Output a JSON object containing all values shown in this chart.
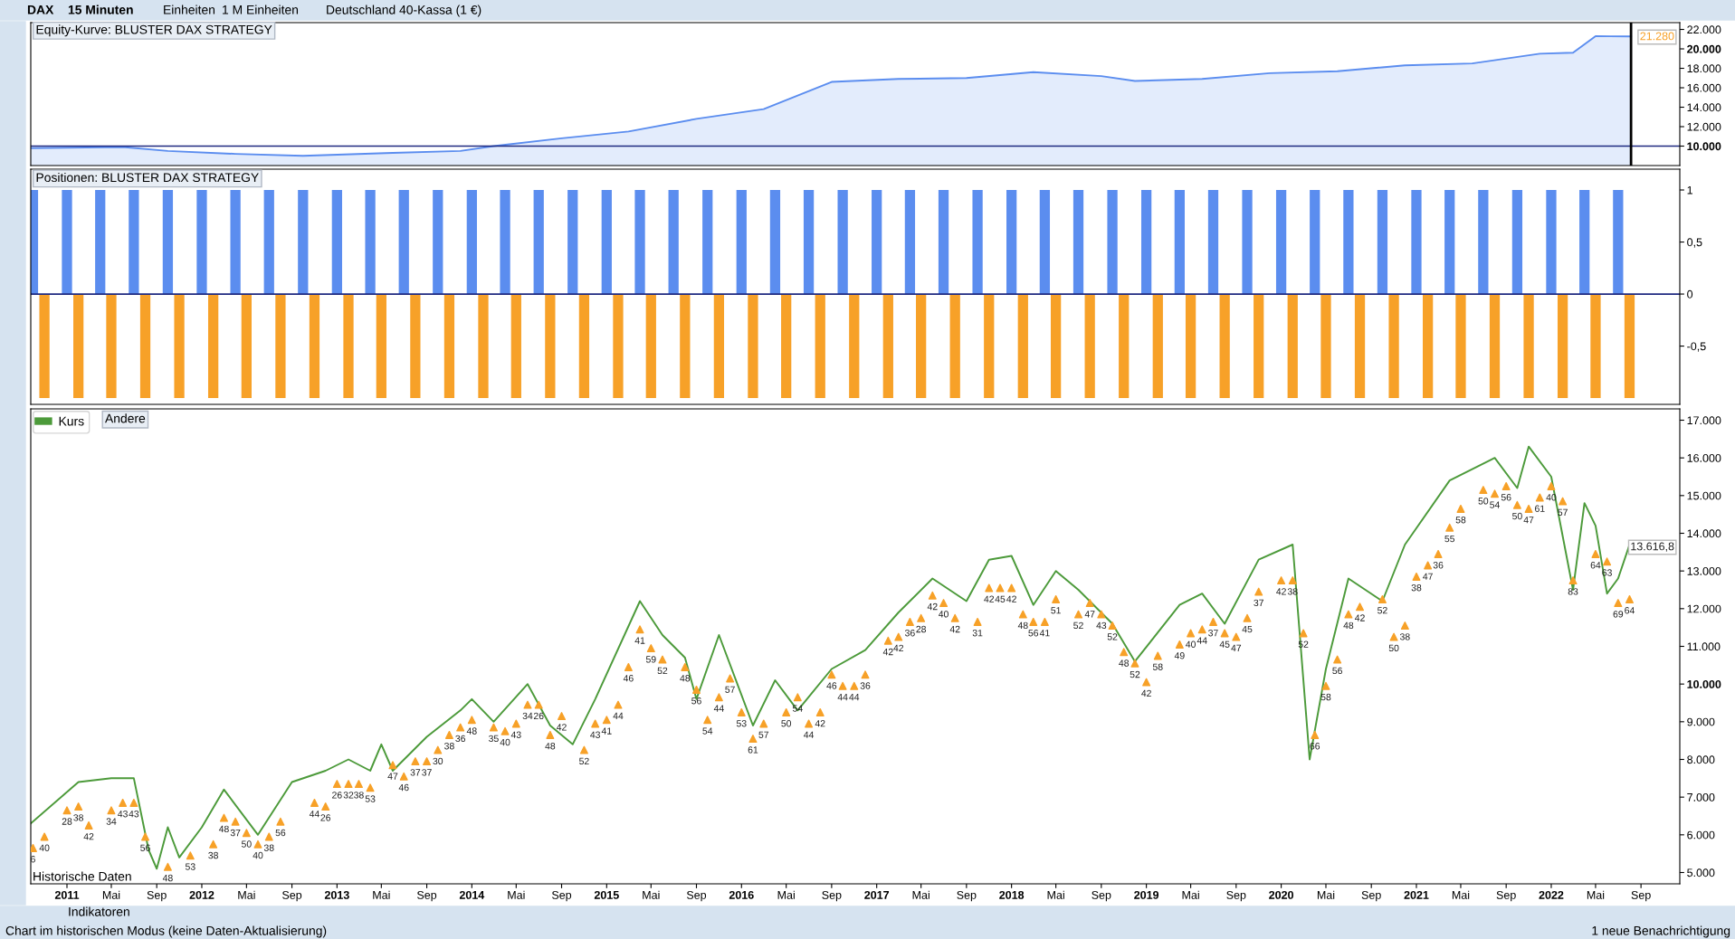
{
  "chart_data": [
    {
      "type": "area",
      "title": "Equity-Kurve: BLUSTER DAX STRATEGY",
      "xlim": [
        "2010-09-25",
        "2022-12-15"
      ],
      "ylim": [
        8000,
        22700
      ],
      "tick_labels": "y",
      "yticks": [
        {
          "value": 10000,
          "label": "10.000"
        },
        {
          "value": 12000,
          "label": "12.000"
        },
        {
          "value": 14000,
          "label": "14.000"
        },
        {
          "value": 16000,
          "label": "16.000"
        },
        {
          "value": 18000,
          "label": "18.000"
        },
        {
          "value": 20000,
          "label": "20.000"
        },
        {
          "value": 22000,
          "label": "22.000"
        }
      ],
      "ref_lines": [
        {
          "axis": "y",
          "value": 10000,
          "color": "#1f2a80"
        },
        {
          "axis": "x",
          "value": "2022-08-05",
          "color": "#000000"
        }
      ],
      "annotations": [
        "DAX",
        "15 Minuten",
        "Einheiten",
        "1 M Einheiten",
        "Deutschland 40-Kassa (1 €)",
        "21.280"
      ],
      "series": [
        {
          "color": "#5b8def",
          "x": [
            "2010-09-25",
            "2011-06",
            "2011-10",
            "2012-04",
            "2012-10",
            "2013-06",
            "2013-12",
            "2014-03",
            "2014-09",
            "2015-03",
            "2015-09",
            "2016-03",
            "2016-09",
            "2017-03",
            "2017-09",
            "2018-03",
            "2018-09",
            "2018-12",
            "2019-06",
            "2019-12",
            "2020-06",
            "2020-12",
            "2021-06",
            "2021-12",
            "2022-03",
            "2022-05",
            "2022-08-05"
          ],
          "values": [
            9800,
            9900,
            9500,
            9200,
            9000,
            9300,
            9500,
            10000,
            10800,
            11500,
            12800,
            13800,
            16600,
            16900,
            17000,
            17600,
            17200,
            16700,
            16900,
            17500,
            17700,
            18300,
            18500,
            19500,
            19600,
            21300,
            21280
          ]
        }
      ]
    },
    {
      "type": "bar",
      "title": "Positionen: BLUSTER DAX STRATEGY",
      "xlim": [
        "2010-09-25",
        "2022-12-15"
      ],
      "ylim": [
        -1.06,
        1.2
      ],
      "tick_labels": "y",
      "yticks": [
        {
          "value": -0.5,
          "label": "-0,5"
        },
        0,
        {
          "value": 0.5,
          "label": "0,5"
        },
        1
      ],
      "ref_lines": [
        {
          "axis": "y",
          "value": 0,
          "color": "#1f2a80"
        }
      ],
      "series": [
        {
          "color": "#5b8def",
          "x": [
            "2010-10",
            "2011-01",
            "2011-04",
            "2011-07",
            "2011-10",
            "2012-01",
            "2012-04",
            "2012-07",
            "2012-10",
            "2013-01",
            "2013-04",
            "2013-07",
            "2013-10",
            "2014-01",
            "2014-04",
            "2014-07",
            "2014-10",
            "2015-01",
            "2015-04",
            "2015-07",
            "2015-10",
            "2016-01",
            "2016-04",
            "2016-07",
            "2016-10",
            "2017-01",
            "2017-04",
            "2017-07",
            "2017-10",
            "2018-01",
            "2018-04",
            "2018-07",
            "2018-10",
            "2019-01",
            "2019-04",
            "2019-07",
            "2019-10",
            "2020-01",
            "2020-04",
            "2020-07",
            "2020-10",
            "2021-01",
            "2021-04",
            "2021-07",
            "2021-10",
            "2022-01",
            "2022-04",
            "2022-07"
          ],
          "values": [
            1,
            1,
            1,
            1,
            1,
            1,
            1,
            1,
            1,
            1,
            1,
            1,
            1,
            1,
            1,
            1,
            1,
            1,
            1,
            1,
            1,
            1,
            1,
            1,
            1,
            1,
            1,
            1,
            1,
            1,
            1,
            1,
            1,
            1,
            1,
            1,
            1,
            1,
            1,
            1,
            1,
            1,
            1,
            1,
            1,
            1,
            1,
            1
          ]
        },
        {
          "color": "#f7a128",
          "x": [
            "2010-11",
            "2011-02",
            "2011-05",
            "2011-08",
            "2011-11",
            "2012-02",
            "2012-05",
            "2012-08",
            "2012-11",
            "2013-02",
            "2013-05",
            "2013-08",
            "2013-11",
            "2014-02",
            "2014-05",
            "2014-08",
            "2014-11",
            "2015-02",
            "2015-05",
            "2015-08",
            "2015-11",
            "2016-02",
            "2016-05",
            "2016-08",
            "2016-11",
            "2017-02",
            "2017-05",
            "2017-08",
            "2017-11",
            "2018-02",
            "2018-05",
            "2018-08",
            "2018-11",
            "2019-02",
            "2019-05",
            "2019-08",
            "2019-11",
            "2020-02",
            "2020-05",
            "2020-08",
            "2020-11",
            "2021-02",
            "2021-05",
            "2021-08",
            "2021-11",
            "2022-02",
            "2022-05",
            "2022-08"
          ],
          "values": [
            -1,
            -1,
            -1,
            -1,
            -1,
            -1,
            -1,
            -1,
            -1,
            -1,
            -1,
            -1,
            -1,
            -1,
            -1,
            -1,
            -1,
            -1,
            -1,
            -1,
            -1,
            -1,
            -1,
            -1,
            -1,
            -1,
            -1,
            -1,
            -1,
            -1,
            -1,
            -1,
            -1,
            -1,
            -1,
            -1,
            -1,
            -1,
            -1,
            -1,
            -1,
            -1,
            -1,
            -1,
            -1,
            -1,
            -1,
            -1
          ]
        }
      ]
    },
    {
      "type": "line",
      "xlim": [
        "2010-09-25",
        "2022-12-15"
      ],
      "ylim": [
        4700,
        17300
      ],
      "legend": "top left",
      "yticks": [
        {
          "value": 5000,
          "label": "5.000"
        },
        {
          "value": 6000,
          "label": "6.000"
        },
        {
          "value": 7000,
          "label": "7.000"
        },
        {
          "value": 8000,
          "label": "8.000"
        },
        {
          "value": 9000,
          "label": "9.000"
        },
        {
          "value": 10000,
          "label": "10.000"
        },
        {
          "value": 11000,
          "label": "11.000"
        },
        {
          "value": 12000,
          "label": "12.000"
        },
        {
          "value": 13000,
          "label": "13.000"
        },
        {
          "value": 14000,
          "label": "14.000"
        },
        {
          "value": 15000,
          "label": "15.000"
        },
        {
          "value": 16000,
          "label": "16.000"
        },
        {
          "value": 17000,
          "label": "17.000"
        }
      ],
      "xticks": [
        {
          "value": "2011-01-01",
          "label": "2011"
        },
        {
          "value": "2011-05-01",
          "label": "Mai"
        },
        {
          "value": "2011-09-01",
          "label": "Sep"
        },
        {
          "value": "2012-01-01",
          "label": "2012"
        },
        {
          "value": "2012-05-01",
          "label": "Mai"
        },
        {
          "value": "2012-09-01",
          "label": "Sep"
        },
        {
          "value": "2013-01-01",
          "label": "2013"
        },
        {
          "value": "2013-05-01",
          "label": "Mai"
        },
        {
          "value": "2013-09-01",
          "label": "Sep"
        },
        {
          "value": "2014-01-01",
          "label": "2014"
        },
        {
          "value": "2014-05-01",
          "label": "Mai"
        },
        {
          "value": "2014-09-01",
          "label": "Sep"
        },
        {
          "value": "2015-01-01",
          "label": "2015"
        },
        {
          "value": "2015-05-01",
          "label": "Mai"
        },
        {
          "value": "2015-09-01",
          "label": "Sep"
        },
        {
          "value": "2016-01-01",
          "label": "2016"
        },
        {
          "value": "2016-05-01",
          "label": "Mai"
        },
        {
          "value": "2016-09-01",
          "label": "Sep"
        },
        {
          "value": "2017-01-01",
          "label": "2017"
        },
        {
          "value": "2017-05-01",
          "label": "Mai"
        },
        {
          "value": "2017-09-01",
          "label": "Sep"
        },
        {
          "value": "2018-01-01",
          "label": "2018"
        },
        {
          "value": "2018-05-01",
          "label": "Mai"
        },
        {
          "value": "2018-09-01",
          "label": "Sep"
        },
        {
          "value": "2019-01-01",
          "label": "2019"
        },
        {
          "value": "2019-05-01",
          "label": "Mai"
        },
        {
          "value": "2019-09-01",
          "label": "Sep"
        },
        {
          "value": "2020-01-01",
          "label": "2020"
        },
        {
          "value": "2020-05-01",
          "label": "Mai"
        },
        {
          "value": "2020-09-01",
          "label": "Sep"
        },
        {
          "value": "2021-01-01",
          "label": "2021"
        },
        {
          "value": "2021-05-01",
          "label": "Mai"
        },
        {
          "value": "2021-09-01",
          "label": "Sep"
        },
        {
          "value": "2022-01-01",
          "label": "2022"
        },
        {
          "value": "2022-05-01",
          "label": "Mai"
        },
        {
          "value": "2022-09-01",
          "label": "Sep"
        }
      ],
      "annotations": [
        "Andere",
        "Historische Daten",
        "Indikatoren",
        "Chart im historischen Modus (keine Daten-Aktualisierung)",
        "1 neue Benachrichtigung",
        "13.616,8",
        {
          "text": "6",
          "x": "2010-10",
          "y": 5650
        },
        {
          "text": "40",
          "x": "2010-11",
          "y": 5950
        },
        {
          "text": "28",
          "x": "2011-01",
          "y": 6650
        },
        {
          "text": "38",
          "x": "2011-02",
          "y": 6750
        },
        {
          "text": "42",
          "x": "2011-03",
          "y": 6250
        },
        {
          "text": "34",
          "x": "2011-05",
          "y": 6650
        },
        {
          "text": "43",
          "x": "2011-06",
          "y": 6850
        },
        {
          "text": "43",
          "x": "2011-07",
          "y": 6850
        },
        {
          "text": "56",
          "x": "2011-08",
          "y": 5950
        },
        {
          "text": "48",
          "x": "2011-10",
          "y": 5150
        },
        {
          "text": "53",
          "x": "2011-12",
          "y": 5450
        },
        {
          "text": "38",
          "x": "2012-02",
          "y": 5750
        },
        {
          "text": "48",
          "x": "2012-03",
          "y": 6450
        },
        {
          "text": "37",
          "x": "2012-04",
          "y": 6350
        },
        {
          "text": "50",
          "x": "2012-05",
          "y": 6050
        },
        {
          "text": "40",
          "x": "2012-06",
          "y": 5750
        },
        {
          "text": "38",
          "x": "2012-07",
          "y": 5950
        },
        {
          "text": "56",
          "x": "2012-08",
          "y": 6350
        },
        {
          "text": "44",
          "x": "2012-11",
          "y": 6850
        },
        {
          "text": "26",
          "x": "2012-12",
          "y": 6750
        },
        {
          "text": "26",
          "x": "2013-01",
          "y": 7350
        },
        {
          "text": "32",
          "x": "2013-02",
          "y": 7350
        },
        {
          "text": "38",
          "x": "2013-03",
          "y": 7350
        },
        {
          "text": "53",
          "x": "2013-04",
          "y": 7250
        },
        {
          "text": "47",
          "x": "2013-06",
          "y": 7850
        },
        {
          "text": "46",
          "x": "2013-07",
          "y": 7550
        },
        {
          "text": "37",
          "x": "2013-08",
          "y": 7950
        },
        {
          "text": "37",
          "x": "2013-09",
          "y": 7950
        },
        {
          "text": "30",
          "x": "2013-10",
          "y": 8250
        },
        {
          "text": "38",
          "x": "2013-11",
          "y": 8650
        },
        {
          "text": "36",
          "x": "2013-12",
          "y": 8850
        },
        {
          "text": "48",
          "x": "2014-01",
          "y": 9050
        },
        {
          "text": "35",
          "x": "2014-03",
          "y": 8850
        },
        {
          "text": "40",
          "x": "2014-04",
          "y": 8750
        },
        {
          "text": "43",
          "x": "2014-05",
          "y": 8950
        },
        {
          "text": "34",
          "x": "2014-06",
          "y": 9450
        },
        {
          "text": "26",
          "x": "2014-07",
          "y": 9450
        },
        {
          "text": "48",
          "x": "2014-08",
          "y": 8650
        },
        {
          "text": "42",
          "x": "2014-09",
          "y": 9150
        },
        {
          "text": "52",
          "x": "2014-11",
          "y": 8250
        },
        {
          "text": "43",
          "x": "2014-12",
          "y": 8950
        },
        {
          "text": "41",
          "x": "2015-01",
          "y": 9050
        },
        {
          "text": "44",
          "x": "2015-02",
          "y": 9450
        },
        {
          "text": "46",
          "x": "2015-03",
          "y": 10450
        },
        {
          "text": "41",
          "x": "2015-04",
          "y": 11450
        },
        {
          "text": "59",
          "x": "2015-05",
          "y": 10950
        },
        {
          "text": "52",
          "x": "2015-06",
          "y": 10650
        },
        {
          "text": "48",
          "x": "2015-08",
          "y": 10450
        },
        {
          "text": "56",
          "x": "2015-09",
          "y": 9850
        },
        {
          "text": "54",
          "x": "2015-10",
          "y": 9050
        },
        {
          "text": "44",
          "x": "2015-11",
          "y": 9650
        },
        {
          "text": "57",
          "x": "2015-12",
          "y": 10150
        },
        {
          "text": "53",
          "x": "2016-01",
          "y": 9250
        },
        {
          "text": "61",
          "x": "2016-02",
          "y": 8550
        },
        {
          "text": "57",
          "x": "2016-03",
          "y": 8950
        },
        {
          "text": "50",
          "x": "2016-05",
          "y": 9250
        },
        {
          "text": "54",
          "x": "2016-06",
          "y": 9650
        },
        {
          "text": "44",
          "x": "2016-07",
          "y": 8950
        },
        {
          "text": "42",
          "x": "2016-08",
          "y": 9250
        },
        {
          "text": "46",
          "x": "2016-09",
          "y": 10250
        },
        {
          "text": "44",
          "x": "2016-10",
          "y": 9950
        },
        {
          "text": "44",
          "x": "2016-11",
          "y": 9950
        },
        {
          "text": "36",
          "x": "2016-12",
          "y": 10250
        },
        {
          "text": "42",
          "x": "2017-02",
          "y": 11150
        },
        {
          "text": "42",
          "x": "2017-03",
          "y": 11250
        },
        {
          "text": "36",
          "x": "2017-04",
          "y": 11650
        },
        {
          "text": "28",
          "x": "2017-05",
          "y": 11750
        },
        {
          "text": "42",
          "x": "2017-06",
          "y": 12350
        },
        {
          "text": "40",
          "x": "2017-07",
          "y": 12150
        },
        {
          "text": "42",
          "x": "2017-08",
          "y": 11750
        },
        {
          "text": "31",
          "x": "2017-10",
          "y": 11650
        },
        {
          "text": "42",
          "x": "2017-11",
          "y": 12550
        },
        {
          "text": "45",
          "x": "2017-12",
          "y": 12550
        },
        {
          "text": "42",
          "x": "2018-01",
          "y": 12550
        },
        {
          "text": "48",
          "x": "2018-02",
          "y": 11850
        },
        {
          "text": "56",
          "x": "2018-03",
          "y": 11650
        },
        {
          "text": "41",
          "x": "2018-04",
          "y": 11650
        },
        {
          "text": "51",
          "x": "2018-05",
          "y": 12250
        },
        {
          "text": "52",
          "x": "2018-07",
          "y": 11850
        },
        {
          "text": "47",
          "x": "2018-08",
          "y": 12150
        },
        {
          "text": "43",
          "x": "2018-09",
          "y": 11850
        },
        {
          "text": "52",
          "x": "2018-10",
          "y": 11550
        },
        {
          "text": "48",
          "x": "2018-11",
          "y": 10850
        },
        {
          "text": "52",
          "x": "2018-12",
          "y": 10550
        },
        {
          "text": "42",
          "x": "2019-01",
          "y": 10050
        },
        {
          "text": "58",
          "x": "2019-02",
          "y": 10750
        },
        {
          "text": "49",
          "x": "2019-04",
          "y": 11050
        },
        {
          "text": "40",
          "x": "2019-05",
          "y": 11350
        },
        {
          "text": "44",
          "x": "2019-06",
          "y": 11450
        },
        {
          "text": "37",
          "x": "2019-07",
          "y": 11650
        },
        {
          "text": "45",
          "x": "2019-08",
          "y": 11350
        },
        {
          "text": "47",
          "x": "2019-09",
          "y": 11250
        },
        {
          "text": "45",
          "x": "2019-10",
          "y": 11750
        },
        {
          "text": "37",
          "x": "2019-11",
          "y": 12450
        },
        {
          "text": "42",
          "x": "2020-01",
          "y": 12750
        },
        {
          "text": "38",
          "x": "2020-02",
          "y": 12750
        },
        {
          "text": "52",
          "x": "2020-03",
          "y": 11350
        },
        {
          "text": "66",
          "x": "2020-04",
          "y": 8650
        },
        {
          "text": "58",
          "x": "2020-05",
          "y": 9950
        },
        {
          "text": "56",
          "x": "2020-06",
          "y": 10650
        },
        {
          "text": "48",
          "x": "2020-07",
          "y": 11850
        },
        {
          "text": "42",
          "x": "2020-08",
          "y": 12050
        },
        {
          "text": "52",
          "x": "2020-10",
          "y": 12250
        },
        {
          "text": "50",
          "x": "2020-11",
          "y": 11250
        },
        {
          "text": "38",
          "x": "2020-12",
          "y": 11550
        },
        {
          "text": "38",
          "x": "2021-01",
          "y": 12850
        },
        {
          "text": "47",
          "x": "2021-02",
          "y": 13150
        },
        {
          "text": "36",
          "x": "2021-03",
          "y": 13450
        },
        {
          "text": "55",
          "x": "2021-04",
          "y": 14150
        },
        {
          "text": "58",
          "x": "2021-05",
          "y": 14650
        },
        {
          "text": "50",
          "x": "2021-07",
          "y": 15150
        },
        {
          "text": "54",
          "x": "2021-08",
          "y": 15050
        },
        {
          "text": "56",
          "x": "2021-09",
          "y": 15250
        },
        {
          "text": "50",
          "x": "2021-10",
          "y": 14750
        },
        {
          "text": "47",
          "x": "2021-11",
          "y": 14650
        },
        {
          "text": "61",
          "x": "2021-12",
          "y": 14950
        },
        {
          "text": "40",
          "x": "2022-01",
          "y": 15250
        },
        {
          "text": "57",
          "x": "2022-02",
          "y": 14850
        },
        {
          "text": "83",
          "x": "2022-03",
          "y": 12750
        },
        {
          "text": "64",
          "x": "2022-05",
          "y": 13450
        },
        {
          "text": "63",
          "x": "2022-06",
          "y": 13250
        },
        {
          "text": "69",
          "x": "2022-07",
          "y": 12150
        },
        {
          "text": "64",
          "x": "2022-08",
          "y": 12250
        }
      ],
      "series": [
        {
          "name": "Kurs",
          "color": "#4c9a3a",
          "x": [
            "2010-09-25",
            "2011-02",
            "2011-05",
            "2011-07",
            "2011-08-10",
            "2011-09",
            "2011-10",
            "2011-11",
            "2012-01",
            "2012-03",
            "2012-06",
            "2012-09",
            "2012-12",
            "2013-02",
            "2013-04",
            "2013-05",
            "2013-06",
            "2013-09",
            "2013-12",
            "2014-01",
            "2014-03",
            "2014-06",
            "2014-08",
            "2014-10",
            "2014-12",
            "2015-04",
            "2015-06",
            "2015-08",
            "2015-09",
            "2015-11",
            "2016-02",
            "2016-04",
            "2016-06",
            "2016-09",
            "2016-12",
            "2017-03",
            "2017-06",
            "2017-09",
            "2017-11",
            "2018-01",
            "2018-03",
            "2018-05",
            "2018-07",
            "2018-10",
            "2018-12",
            "2019-04",
            "2019-06",
            "2019-08",
            "2019-11",
            "2020-02",
            "2020-03-18",
            "2020-05",
            "2020-07",
            "2020-10",
            "2020-12",
            "2021-04",
            "2021-08",
            "2021-10",
            "2021-11",
            "2022-01",
            "2022-03",
            "2022-04",
            "2022-05",
            "2022-06",
            "2022-07",
            "2022-08"
          ],
          "values": [
            6300,
            7400,
            7500,
            7500,
            5600,
            5100,
            6200,
            5400,
            6200,
            7200,
            6000,
            7400,
            7700,
            8000,
            7700,
            8400,
            7700,
            8600,
            9300,
            9600,
            9000,
            10000,
            8900,
            8400,
            9600,
            12200,
            11300,
            10700,
            9600,
            11300,
            8900,
            10100,
            9300,
            10400,
            10900,
            11900,
            12800,
            12200,
            13300,
            13400,
            12100,
            13000,
            12500,
            11600,
            10600,
            12100,
            12400,
            11600,
            13300,
            13700,
            8000,
            10400,
            12800,
            12200,
            13700,
            15400,
            16000,
            15200,
            16300,
            15500,
            12500,
            14800,
            14200,
            12400,
            12800,
            13700
          ]
        },
        {
          "type": "scatter",
          "marker": "triangle",
          "color": "#f7a128",
          "x": [
            "2010-10",
            "2010-11",
            "2011-01",
            "2011-02",
            "2011-03",
            "2011-05",
            "2011-06",
            "2011-07",
            "2011-08",
            "2011-10",
            "2011-12",
            "2012-02",
            "2012-03",
            "2012-04",
            "2012-05",
            "2012-06",
            "2012-07",
            "2012-08",
            "2012-11",
            "2012-12",
            "2013-01",
            "2013-02",
            "2013-03",
            "2013-04",
            "2013-06",
            "2013-07",
            "2013-08",
            "2013-09",
            "2013-10",
            "2013-11",
            "2013-12",
            "2014-01",
            "2014-03",
            "2014-04",
            "2014-05",
            "2014-06",
            "2014-07",
            "2014-08",
            "2014-09",
            "2014-11",
            "2014-12",
            "2015-01",
            "2015-02",
            "2015-03",
            "2015-04",
            "2015-05",
            "2015-06",
            "2015-08",
            "2015-09",
            "2015-10",
            "2015-11",
            "2015-12",
            "2016-01",
            "2016-02",
            "2016-03",
            "2016-05",
            "2016-06",
            "2016-07",
            "2016-08",
            "2016-09",
            "2016-10",
            "2016-11",
            "2016-12",
            "2017-02",
            "2017-03",
            "2017-04",
            "2017-05",
            "2017-06",
            "2017-07",
            "2017-08",
            "2017-10",
            "2017-11",
            "2017-12",
            "2018-01",
            "2018-02",
            "2018-03",
            "2018-04",
            "2018-05",
            "2018-07",
            "2018-08",
            "2018-09",
            "2018-10",
            "2018-11",
            "2018-12",
            "2019-01",
            "2019-02",
            "2019-04",
            "2019-05",
            "2019-06",
            "2019-07",
            "2019-08",
            "2019-09",
            "2019-10",
            "2019-11",
            "2020-01",
            "2020-02",
            "2020-03",
            "2020-04",
            "2020-05",
            "2020-06",
            "2020-07",
            "2020-08",
            "2020-10",
            "2020-11",
            "2020-12",
            "2021-01",
            "2021-02",
            "2021-03",
            "2021-04",
            "2021-05",
            "2021-07",
            "2021-08",
            "2021-09",
            "2021-10",
            "2021-11",
            "2021-12",
            "2022-01",
            "2022-02",
            "2022-03",
            "2022-05",
            "2022-06",
            "2022-07",
            "2022-08"
          ],
          "values": [
            5650,
            5950,
            6650,
            6750,
            6250,
            6650,
            6850,
            6850,
            5950,
            5150,
            5450,
            5750,
            6450,
            6350,
            6050,
            5750,
            5950,
            6350,
            6850,
            6750,
            7350,
            7350,
            7350,
            7250,
            7850,
            7550,
            7950,
            7950,
            8250,
            8650,
            8850,
            9050,
            8850,
            8750,
            8950,
            9450,
            9450,
            8650,
            9150,
            8250,
            8950,
            9050,
            9450,
            10450,
            11450,
            10950,
            10650,
            10450,
            9850,
            9050,
            9650,
            10150,
            9250,
            8550,
            8950,
            9250,
            9650,
            8950,
            9250,
            10250,
            9950,
            9950,
            10250,
            11150,
            11250,
            11650,
            11750,
            12350,
            12150,
            11750,
            11650,
            12550,
            12550,
            12550,
            11850,
            11650,
            11650,
            12250,
            11850,
            12150,
            11850,
            11550,
            10850,
            10550,
            10050,
            10750,
            11050,
            11350,
            11450,
            11650,
            11350,
            11250,
            11750,
            12450,
            12750,
            12750,
            11350,
            8650,
            9950,
            10650,
            11850,
            12050,
            12250,
            11250,
            11550,
            12850,
            13150,
            13450,
            14150,
            14650,
            15150,
            15050,
            15250,
            14750,
            14650,
            14950,
            15250,
            14850,
            12750,
            13450,
            13250,
            12150,
            12250
          ]
        }
      ]
    }
  ]
}
